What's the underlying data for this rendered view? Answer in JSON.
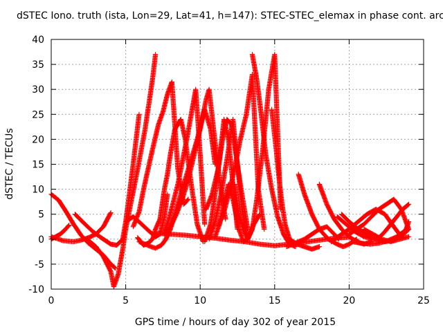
{
  "chart_data": {
    "type": "line",
    "title": "dSTEC Iono. truth (ista, Lon=29, Lat=41, h=147): STEC-STEC_elemax in phase cont. arcs",
    "xlabel": "GPS time / hours of day 302 of year 2015",
    "ylabel": "dSTEC  / TECUs",
    "xlim": [
      0,
      25
    ],
    "ylim": [
      -10,
      40
    ],
    "x_ticks": [
      "0",
      "5",
      "10",
      "15",
      "20",
      "25"
    ],
    "y_ticks": [
      "-10",
      "-5",
      "0",
      "5",
      "10",
      "15",
      "20",
      "25",
      "30",
      "35",
      "40"
    ],
    "grid": true,
    "marker": "plus",
    "color": "#ff0000",
    "series": [
      {
        "x": [
          0.0,
          0.3,
          0.6,
          0.9,
          1.2
        ],
        "y": [
          0.0,
          0.5,
          1.0,
          1.8,
          2.8
        ]
      },
      {
        "x": [
          0.0,
          0.5,
          1.0,
          1.5,
          2.0,
          2.5,
          3.0,
          3.5,
          4.0,
          4.3
        ],
        "y": [
          9.0,
          7.8,
          5.5,
          3.0,
          0.8,
          -0.8,
          -2.0,
          -3.2,
          -5.0,
          -5.8
        ]
      },
      {
        "x": [
          0.0,
          0.8,
          1.5,
          2.0,
          2.5,
          3.0,
          3.5,
          4.0
        ],
        "y": [
          0.5,
          -0.3,
          -0.5,
          -0.2,
          0.3,
          1.0,
          2.5,
          5.3
        ]
      },
      {
        "x": [
          1.6,
          2.2,
          2.8,
          3.4,
          4.0,
          4.4,
          4.8,
          5.0,
          5.2,
          5.5,
          5.9
        ],
        "y": [
          5.0,
          3.2,
          1.5,
          0.2,
          -1.0,
          -1.2,
          0.0,
          3.5,
          8.0,
          15.0,
          25.0
        ]
      },
      {
        "x": [
          2.4,
          3.0,
          3.5,
          4.0,
          4.2,
          4.5,
          4.8,
          5.0,
          5.4,
          5.8,
          6.3,
          6.8,
          7.0
        ],
        "y": [
          0.0,
          -1.5,
          -3.5,
          -6.5,
          -9.5,
          -7.0,
          -2.0,
          2.0,
          8.0,
          14.0,
          22.0,
          32.0,
          37.0
        ]
      },
      {
        "x": [
          5.0,
          5.5,
          6.0,
          6.5,
          7.0,
          7.3,
          7.6,
          7.8
        ],
        "y": [
          3.5,
          4.5,
          3.2,
          1.8,
          0.5,
          1.0,
          4.5,
          9.0
        ]
      },
      {
        "x": [
          5.8,
          6.0,
          6.2,
          6.5,
          6.8,
          7.0,
          7.3,
          7.6,
          7.8,
          8.0,
          8.3,
          8.7,
          9.0,
          9.4,
          9.8,
          10.2
        ],
        "y": [
          0.3,
          -0.5,
          -1.2,
          -0.8,
          0.0,
          2.0,
          4.0,
          10.0,
          13.0,
          17.0,
          22.0,
          24.0,
          20.0,
          11.0,
          3.0,
          -0.5
        ]
      },
      {
        "x": [
          5.5,
          5.9,
          6.2,
          6.5,
          6.8,
          7.2,
          7.5,
          7.8,
          8.1,
          8.5,
          8.9,
          9.2
        ],
        "y": [
          2.5,
          5.5,
          10.0,
          14.0,
          18.0,
          23.0,
          25.5,
          29.0,
          31.5,
          14.0,
          7.0,
          8.0
        ]
      },
      {
        "x": [
          7.6,
          7.9,
          8.2,
          8.5,
          8.8,
          9.1,
          9.4,
          9.7,
          10.0,
          10.3
        ],
        "y": [
          1.5,
          4.0,
          7.5,
          11.0,
          15.5,
          20.0,
          25.0,
          30.0,
          17.0,
          3.0
        ]
      },
      {
        "x": [
          7.6,
          8.0,
          8.4,
          8.8,
          9.2,
          9.6,
          10.0,
          10.4,
          10.6,
          10.9,
          11.3,
          11.7
        ],
        "y": [
          1.0,
          2.5,
          5.0,
          8.0,
          12.0,
          17.0,
          22.0,
          28.0,
          30.0,
          22.0,
          12.0,
          4.0
        ]
      },
      {
        "x": [
          5.9,
          6.3,
          6.7,
          7.0,
          7.4,
          7.7,
          8.0,
          8.3,
          8.7,
          9.2,
          9.8,
          10.3,
          10.7,
          11.0
        ],
        "y": [
          -0.5,
          -1.0,
          -1.5,
          -1.8,
          -1.2,
          0.0,
          2.0,
          5.0,
          9.0,
          14.0,
          20.0,
          26.0,
          22.0,
          15.0
        ]
      },
      {
        "x": [
          10.3,
          10.7,
          11.0,
          11.3,
          11.6,
          11.9,
          12.2,
          12.5
        ],
        "y": [
          -0.5,
          3.0,
          9.0,
          16.0,
          24.0,
          20.0,
          11.0,
          2.0
        ]
      },
      {
        "x": [
          10.6,
          11.0,
          11.4,
          11.8,
          12.2,
          12.5,
          12.8,
          13.2
        ],
        "y": [
          0.0,
          3.5,
          9.0,
          16.0,
          24.0,
          15.0,
          6.0,
          0.0
        ]
      },
      {
        "x": [
          11.0,
          11.3,
          11.6,
          11.9,
          12.2,
          12.6,
          12.9,
          13.2,
          13.6,
          14.0
        ],
        "y": [
          0.5,
          3.0,
          7.0,
          11.0,
          8.0,
          2.0,
          -0.5,
          0.0,
          3.0,
          5.0
        ]
      },
      {
        "x": [
          10.4,
          10.8,
          11.2,
          11.5,
          11.8,
          12.1,
          12.4,
          12.8,
          13.2
        ],
        "y": [
          6.0,
          9.0,
          14.0,
          20.0,
          24.0,
          23.0,
          17.0,
          9.0,
          2.0
        ]
      },
      {
        "x": [
          11.2,
          11.6,
          12.0,
          12.3,
          12.7,
          13.1,
          13.5,
          13.9,
          14.3
        ],
        "y": [
          2.5,
          5.5,
          10.0,
          14.0,
          20.0,
          25.0,
          33.0,
          10.0,
          2.0
        ]
      },
      {
        "x": [
          12.3,
          12.6,
          12.9,
          13.2,
          13.5,
          13.8,
          14.2,
          14.6,
          15.0,
          15.4
        ],
        "y": [
          11.0,
          5.0,
          2.0,
          0.0,
          2.0,
          8.0,
          18.0,
          30.0,
          37.0,
          6.0
        ]
      },
      {
        "x": [
          13.5,
          13.8,
          14.1,
          14.4,
          14.8,
          15.2,
          15.6,
          16.0,
          16.4
        ],
        "y": [
          37.0,
          32.0,
          25.0,
          17.0,
          10.0,
          4.5,
          1.0,
          -1.0,
          -1.5
        ]
      },
      {
        "x": [
          14.8,
          15.1,
          15.3,
          15.5,
          15.7,
          16.0,
          16.5,
          17.0,
          17.5,
          18.0
        ],
        "y": [
          26.0,
          18.0,
          12.0,
          7.0,
          3.0,
          0.0,
          -1.0,
          -1.5,
          -2.0,
          -1.5
        ]
      },
      {
        "x": [
          7.0,
          8.0,
          9.0,
          10.0,
          11.0,
          12.0,
          13.0,
          14.0,
          15.0,
          16.0,
          17.0,
          18.0,
          19.0,
          20.0
        ],
        "y": [
          1.2,
          1.0,
          0.8,
          0.5,
          0.2,
          -0.2,
          -0.5,
          -1.0,
          -1.3,
          -1.0,
          -0.6,
          -0.2,
          0.2,
          0.4
        ]
      },
      {
        "x": [
          15.8,
          16.2,
          16.6,
          17.0,
          17.5,
          18.0,
          18.5,
          19.0,
          19.3
        ],
        "y": [
          -1.5,
          -1.0,
          -0.5,
          0.0,
          1.0,
          2.0,
          2.5,
          1.0,
          0.0
        ]
      },
      {
        "x": [
          16.6,
          17.0,
          17.5,
          18.0,
          18.6,
          19.2,
          19.6,
          20.0,
          20.5
        ],
        "y": [
          13.0,
          9.0,
          5.0,
          2.0,
          0.0,
          -1.0,
          -1.5,
          -1.0,
          0.0
        ]
      },
      {
        "x": [
          18.0,
          18.5,
          19.0,
          19.5,
          20.0,
          20.5,
          21.0,
          21.5
        ],
        "y": [
          11.0,
          7.0,
          4.0,
          2.0,
          0.5,
          -0.5,
          -1.0,
          -0.5
        ]
      },
      {
        "x": [
          18.8,
          19.4,
          20.0,
          20.6,
          21.2,
          21.8,
          22.4,
          23.0,
          23.5
        ],
        "y": [
          -0.5,
          0.8,
          2.0,
          3.5,
          5.0,
          6.0,
          5.0,
          2.5,
          0.5
        ]
      },
      {
        "x": [
          19.2,
          19.8,
          20.4,
          21.0,
          21.6,
          22.0,
          22.4,
          22.8,
          23.2,
          23.6,
          24.0
        ],
        "y": [
          4.5,
          3.0,
          1.5,
          0.5,
          0.0,
          0.3,
          1.5,
          3.0,
          4.5,
          6.0,
          7.0
        ]
      },
      {
        "x": [
          20.0,
          20.5,
          21.0,
          21.5,
          22.0,
          22.5,
          23.0,
          23.5,
          24.0
        ],
        "y": [
          1.0,
          2.0,
          3.0,
          4.5,
          6.0,
          7.0,
          8.0,
          6.0,
          2.0
        ]
      },
      {
        "x": [
          19.5,
          20.0,
          20.6,
          21.2,
          21.8,
          22.4,
          23.0,
          23.6,
          24.0
        ],
        "y": [
          5.0,
          3.5,
          2.0,
          1.0,
          0.0,
          -0.5,
          -0.2,
          0.8,
          2.0
        ]
      },
      {
        "x": [
          20.2,
          20.8,
          21.4,
          22.0,
          22.6,
          23.2,
          23.8,
          24.0
        ],
        "y": [
          -0.5,
          -0.8,
          -1.0,
          -0.8,
          -0.3,
          0.5,
          1.8,
          3.5
        ]
      },
      {
        "x": [
          21.0,
          21.6,
          22.2,
          22.8,
          23.4,
          24.0
        ],
        "y": [
          2.0,
          1.0,
          0.0,
          -0.5,
          0.0,
          0.5
        ]
      }
    ]
  }
}
